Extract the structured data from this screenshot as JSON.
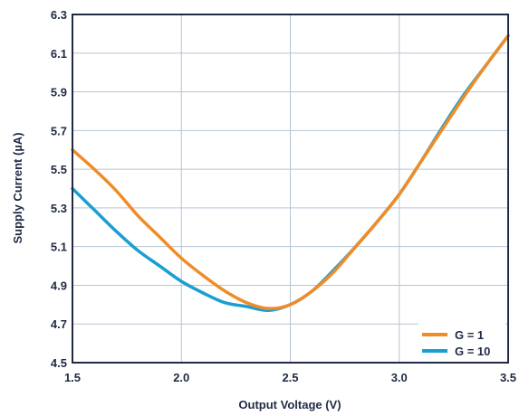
{
  "chart_data": {
    "type": "line",
    "title": "",
    "xlabel": "Output Voltage (V)",
    "ylabel": "Supply Current (µA)",
    "xlim": [
      1.5,
      3.5
    ],
    "ylim": [
      4.5,
      6.3
    ],
    "xticks": [
      "1.5",
      "2.0",
      "2.5",
      "3.0",
      "3.5"
    ],
    "yticks": [
      "4.5",
      "4.7",
      "4.9",
      "5.1",
      "5.3",
      "5.5",
      "5.7",
      "5.9",
      "6.1",
      "6.3"
    ],
    "grid": true,
    "legend_position": "bottom-right",
    "series": [
      {
        "name": "G = 1",
        "color": "#f08c28",
        "x": [
          1.5,
          1.6,
          1.7,
          1.8,
          1.9,
          2.0,
          2.1,
          2.2,
          2.3,
          2.4,
          2.5,
          2.6,
          2.7,
          2.8,
          2.9,
          3.0,
          3.1,
          3.2,
          3.3,
          3.4,
          3.5
        ],
        "y": [
          5.6,
          5.5,
          5.39,
          5.26,
          5.15,
          5.04,
          4.95,
          4.87,
          4.81,
          4.78,
          4.8,
          4.87,
          4.97,
          5.1,
          5.23,
          5.37,
          5.54,
          5.71,
          5.88,
          6.04,
          6.19
        ]
      },
      {
        "name": "G = 10",
        "color": "#1a9fd0",
        "x": [
          1.5,
          1.6,
          1.7,
          1.8,
          1.9,
          2.0,
          2.1,
          2.2,
          2.3,
          2.4,
          2.5,
          2.6,
          2.7,
          2.8,
          2.9,
          3.0,
          3.1,
          3.2,
          3.3,
          3.4,
          3.5
        ],
        "y": [
          5.4,
          5.29,
          5.18,
          5.08,
          5.0,
          4.92,
          4.86,
          4.81,
          4.79,
          4.77,
          4.8,
          4.87,
          4.98,
          5.1,
          5.23,
          5.37,
          5.54,
          5.72,
          5.89,
          6.04,
          6.19
        ]
      }
    ]
  }
}
